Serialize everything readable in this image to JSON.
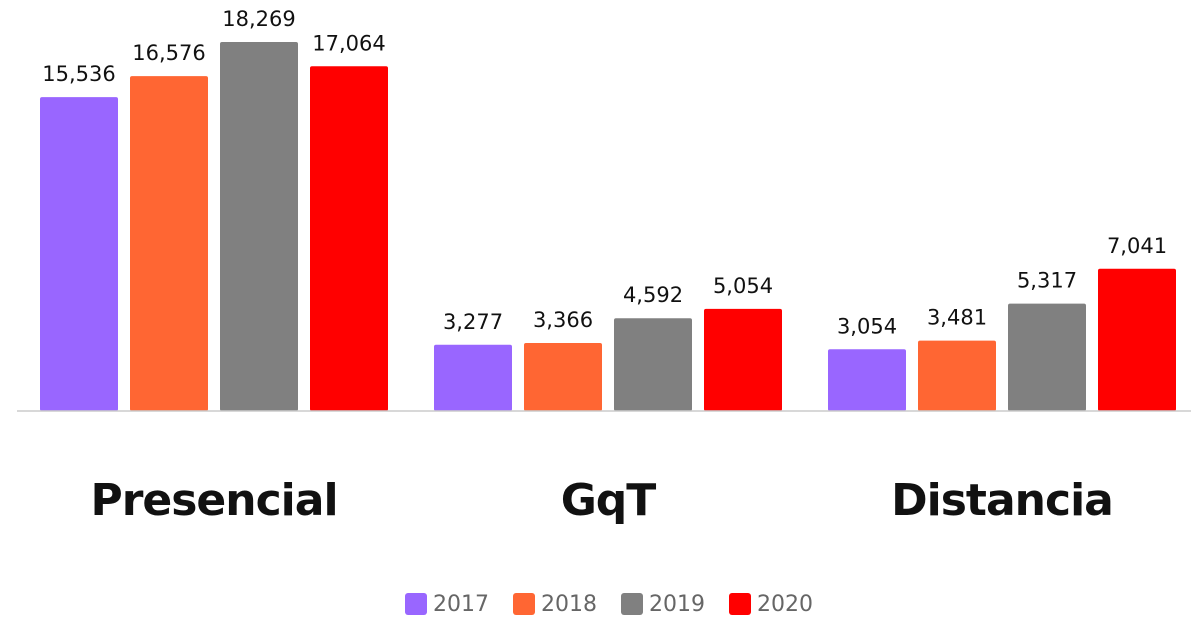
{
  "chart_data": {
    "type": "bar",
    "categories": [
      "Presencial",
      "GqT",
      "Distancia"
    ],
    "series": [
      {
        "name": "2017",
        "color": "#9966ff",
        "values": [
          15536,
          3277,
          3054
        ],
        "value_labels": [
          "15,536",
          "3,277",
          "3,054"
        ]
      },
      {
        "name": "2018",
        "color": "#ff6633",
        "values": [
          16576,
          3366,
          3481
        ],
        "value_labels": [
          "16,576",
          "3,366",
          "3,481"
        ]
      },
      {
        "name": "2019",
        "color": "#808080",
        "values": [
          18269,
          4592,
          5317
        ],
        "value_labels": [
          "18,269",
          "4,592",
          "5,317"
        ]
      },
      {
        "name": "2020",
        "color": "#ff0000",
        "values": [
          17064,
          5054,
          7041
        ],
        "value_labels": [
          "17,064",
          "5,054",
          "7,041"
        ]
      }
    ],
    "ylim": [
      0,
      20000
    ],
    "legend": "bottom"
  }
}
